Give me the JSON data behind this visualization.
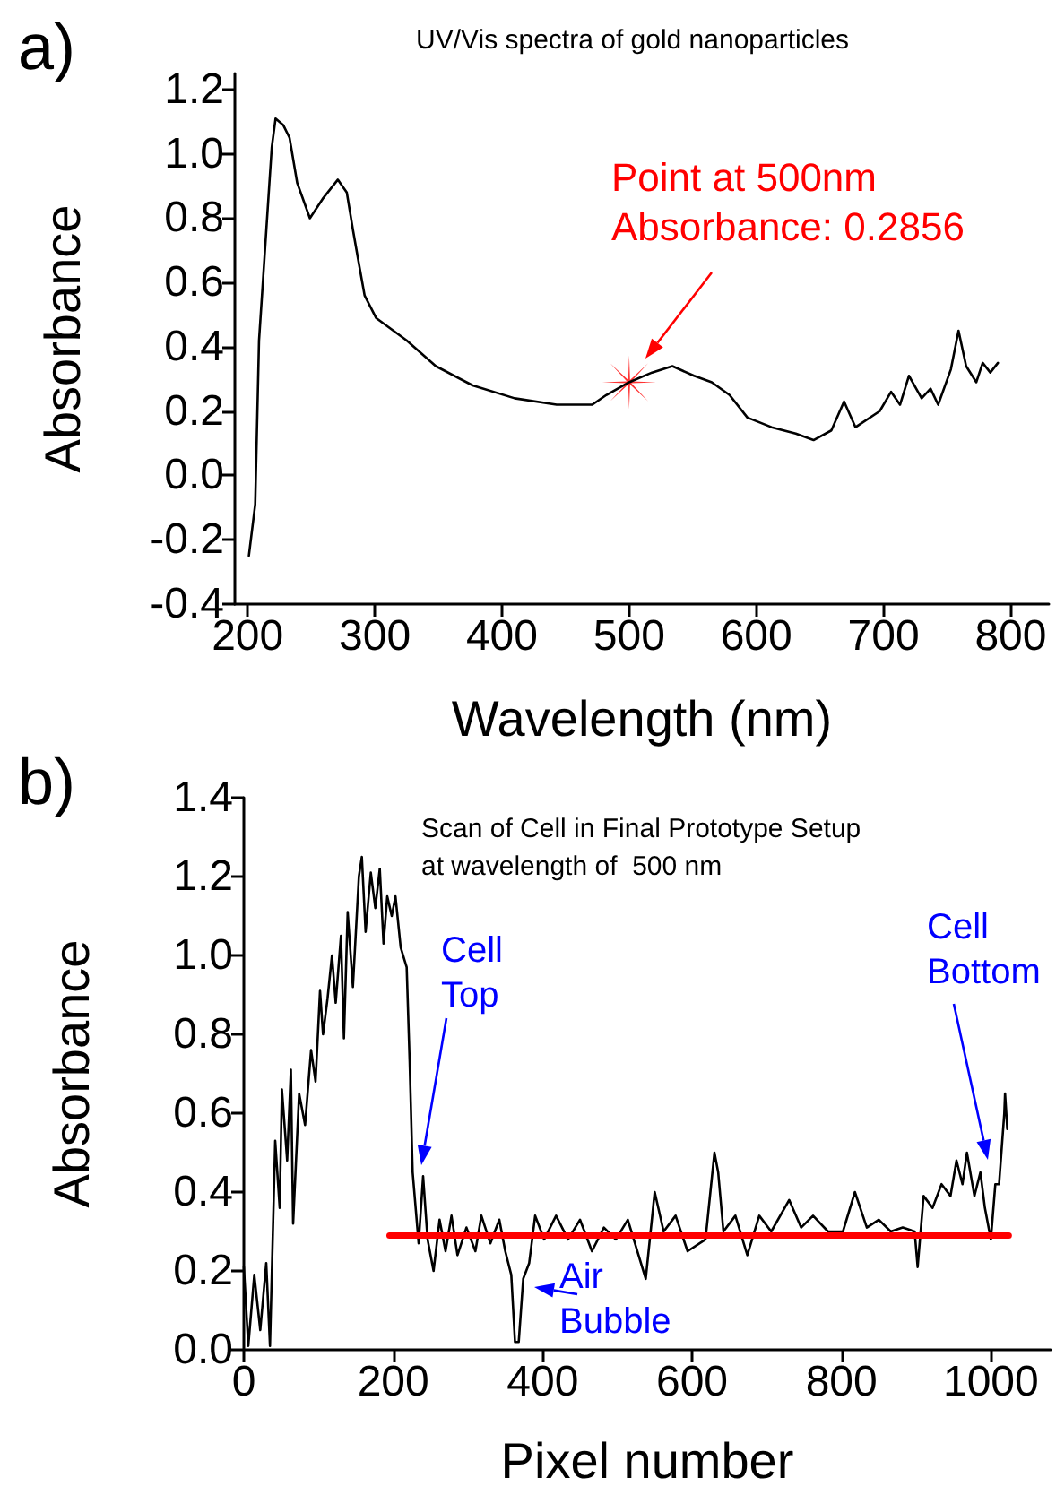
{
  "chart_data": [
    {
      "type": "line",
      "title": "UV/Vis spectra of gold nanoparticles",
      "xlabel": "Wavelength (nm)",
      "ylabel": "Absorbance",
      "annotations": [
        "a)",
        "Point at 500nm\nAbsorbance: 0.2856"
      ],
      "xlim": [
        190,
        830
      ],
      "xticks": [
        200,
        300,
        400,
        500,
        600,
        700,
        800
      ],
      "ylim": [
        -0.4,
        1.25
      ],
      "yticks": [
        {
          "value": -0.4,
          "label": "-0.4"
        },
        {
          "value": -0.2,
          "label": "-0.2"
        },
        {
          "value": 0,
          "label": "0.0"
        },
        {
          "value": 0.2,
          "label": "0.2"
        },
        {
          "value": 0.4,
          "label": "0.4"
        },
        {
          "value": 0.6,
          "label": "0.6"
        },
        {
          "value": 0.8,
          "label": "0.8"
        },
        {
          "value": 1,
          "label": "1.0"
        },
        {
          "value": 1.2,
          "label": "1.2"
        }
      ],
      "grid": false,
      "series": [
        {
          "color": "#000000",
          "marker": "none",
          "x": [
            201,
            206,
            209,
            219,
            222,
            228,
            233,
            239,
            249,
            259,
            271,
            278,
            283,
            287,
            292,
            301,
            325,
            348,
            377,
            410,
            443,
            471,
            482,
            500,
            518,
            534,
            551,
            565,
            579,
            593,
            612,
            631,
            645,
            659,
            669,
            678,
            697,
            706,
            713,
            720,
            730,
            737,
            743,
            753,
            759,
            765,
            773,
            778,
            784,
            790
          ],
          "values": [
            -0.25,
            -0.09,
            0.42,
            1.02,
            1.11,
            1.09,
            1.05,
            0.91,
            0.8,
            0.86,
            0.92,
            0.88,
            0.76,
            0.67,
            0.56,
            0.49,
            0.42,
            0.34,
            0.28,
            0.24,
            0.22,
            0.22,
            0.25,
            0.29,
            0.32,
            0.34,
            0.31,
            0.29,
            0.25,
            0.18,
            0.15,
            0.13,
            0.11,
            0.14,
            0.23,
            0.15,
            0.2,
            0.26,
            0.22,
            0.31,
            0.24,
            0.27,
            0.22,
            0.33,
            0.45,
            0.34,
            0.29,
            0.35,
            0.32,
            0.35
          ]
        },
        {
          "type": "scatter",
          "color": "#ff0000",
          "marker": "cross",
          "x": [
            500
          ],
          "values": [
            0.29
          ]
        }
      ]
    },
    {
      "type": "line",
      "title": "Scan of Cell in Final Prototype Setup\nat wavelength of  500 nm",
      "xlabel": "Pixel number",
      "ylabel": "Absorbance",
      "annotations": [
        "b)",
        "Cell\nTop",
        "Air\nBubble",
        "Cell\nBottom"
      ],
      "xlim": [
        0,
        1080
      ],
      "xticks": [
        0,
        200,
        400,
        600,
        800,
        1000
      ],
      "ylim": [
        0,
        1.4
      ],
      "yticks": [
        {
          "value": 0,
          "label": "0.0"
        },
        {
          "value": 0.2,
          "label": "0.2"
        },
        {
          "value": 0.4,
          "label": "0.4"
        },
        {
          "value": 0.6,
          "label": "0.6"
        },
        {
          "value": 0.8,
          "label": "0.8"
        },
        {
          "value": 1,
          "label": "1.0"
        },
        {
          "value": 1.2,
          "label": "1.2"
        },
        {
          "value": 1.4,
          "label": "1.4"
        }
      ],
      "grid": false,
      "series": [
        {
          "color": "#000000",
          "marker": "none",
          "x": [
            0,
            6,
            14,
            22,
            30,
            35,
            42,
            48,
            51,
            58,
            63,
            66,
            74,
            82,
            90,
            96,
            102,
            106,
            112,
            118,
            123,
            130,
            134,
            139,
            146,
            154,
            158,
            163,
            170,
            176,
            182,
            187,
            192,
            198,
            203,
            210,
            218,
            222,
            226,
            234,
            240,
            246,
            254,
            262,
            270,
            278,
            286,
            298,
            310,
            318,
            330,
            342,
            350,
            358,
            363,
            368,
            374,
            382,
            390,
            402,
            418,
            434,
            450,
            466,
            482,
            498,
            514,
            538,
            550,
            562,
            578,
            594,
            618,
            630,
            635,
            642,
            658,
            674,
            690,
            706,
            730,
            746,
            762,
            782,
            802,
            818,
            834,
            850,
            866,
            882,
            898,
            902,
            910,
            922,
            934,
            946,
            954,
            962,
            968,
            978,
            986,
            992,
            1000,
            1006,
            1011,
            1018,
            1019,
            1022
          ],
          "values": [
            0.21,
            0.01,
            0.19,
            0.05,
            0.22,
            0.01,
            0.53,
            0.36,
            0.66,
            0.48,
            0.71,
            0.32,
            0.65,
            0.57,
            0.76,
            0.68,
            0.91,
            0.8,
            0.89,
            1.0,
            0.88,
            1.05,
            0.79,
            1.11,
            0.92,
            1.2,
            1.25,
            1.06,
            1.21,
            1.12,
            1.22,
            1.03,
            1.15,
            1.1,
            1.15,
            1.02,
            0.97,
            0.73,
            0.45,
            0.27,
            0.44,
            0.28,
            0.2,
            0.33,
            0.25,
            0.34,
            0.24,
            0.31,
            0.25,
            0.34,
            0.27,
            0.33,
            0.25,
            0.19,
            0.02,
            0.02,
            0.18,
            0.22,
            0.34,
            0.28,
            0.34,
            0.28,
            0.33,
            0.25,
            0.31,
            0.28,
            0.33,
            0.18,
            0.4,
            0.3,
            0.34,
            0.25,
            0.28,
            0.5,
            0.45,
            0.3,
            0.34,
            0.24,
            0.34,
            0.3,
            0.38,
            0.31,
            0.34,
            0.3,
            0.3,
            0.4,
            0.31,
            0.33,
            0.3,
            0.31,
            0.3,
            0.21,
            0.39,
            0.36,
            0.42,
            0.39,
            0.48,
            0.42,
            0.5,
            0.39,
            0.45,
            0.36,
            0.28,
            0.42,
            0.42,
            0.6,
            0.65,
            0.56
          ]
        },
        {
          "color": "#ff0000",
          "marker": "none",
          "x": [
            195,
            1024
          ],
          "values": [
            0.29,
            0.29
          ]
        }
      ]
    }
  ]
}
